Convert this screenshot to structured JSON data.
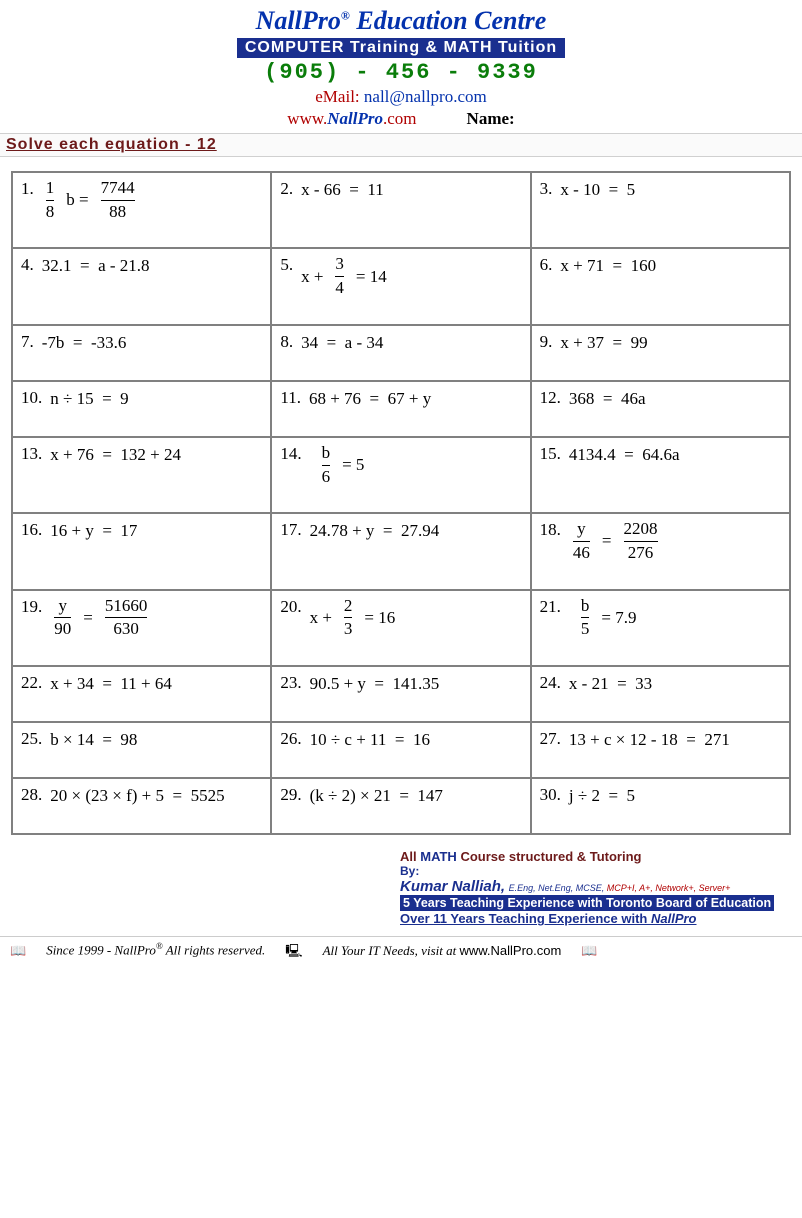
{
  "header": {
    "brand_pre": "NallPro",
    "brand_sup": "®",
    "brand_post": " Education Centre",
    "subhead": "COMPUTER Training & MATH Tuition",
    "phone": "(905) - 456 - 9339",
    "email_label": "eMail:",
    "email_value": "nall@nallpro.com",
    "www_pre": "www.",
    "www_brand": "NallPro",
    "www_post": ".com",
    "name_label": "Name:"
  },
  "title": "Solve each equation - 12",
  "problems": [
    {
      "n": "1.",
      "type": "fraceq",
      "lfrac": {
        "t": "1",
        "b": "8"
      },
      "mid": " b   =",
      "rfrac": {
        "t": "7744",
        "b": "88"
      }
    },
    {
      "n": "2.",
      "type": "plain",
      "text": "x - 66   =   11"
    },
    {
      "n": "3.",
      "type": "plain",
      "text": "x - 10   =   5"
    },
    {
      "n": "4.",
      "type": "plain",
      "text": "32.1   =   a - 21.8"
    },
    {
      "n": "5.",
      "type": "midfrac",
      "pre": "x +",
      "frac": {
        "t": "3",
        "b": "4"
      },
      "post": "=   14"
    },
    {
      "n": "6.",
      "type": "plain",
      "text": "x + 71   =   160"
    },
    {
      "n": "7.",
      "type": "plain",
      "text": "-7b   =   -33.6"
    },
    {
      "n": "8.",
      "type": "plain",
      "text": "34   =   a - 34"
    },
    {
      "n": "9.",
      "type": "plain",
      "text": "x + 37   =   99"
    },
    {
      "n": "10.",
      "type": "plain",
      "text": "n ÷ 15   =   9"
    },
    {
      "n": "11.",
      "type": "plain",
      "text": "68 + 76   =   67 + y"
    },
    {
      "n": "12.",
      "type": "plain",
      "text": "368   =   46a"
    },
    {
      "n": "13.",
      "type": "plain",
      "text": "x + 76   =   132 + 24"
    },
    {
      "n": "14.",
      "type": "midfrac",
      "pre": "",
      "frac": {
        "t": "b",
        "b": "6"
      },
      "post": "=   5"
    },
    {
      "n": "15.",
      "type": "plain",
      "text": "4134.4   =   64.6a"
    },
    {
      "n": "16.",
      "type": "plain",
      "text": "16 + y   =   17"
    },
    {
      "n": "17.",
      "type": "plain",
      "text": "24.78 + y   =   27.94"
    },
    {
      "n": "18.",
      "type": "fraceq",
      "lfrac": {
        "t": "y",
        "b": "46"
      },
      "mid": "=",
      "rfrac": {
        "t": "2208",
        "b": "276"
      }
    },
    {
      "n": "19.",
      "type": "fraceq",
      "lfrac": {
        "t": "y",
        "b": "90"
      },
      "mid": "=",
      "rfrac": {
        "t": "51660",
        "b": "630"
      }
    },
    {
      "n": "20.",
      "type": "midfrac",
      "pre": "x +",
      "frac": {
        "t": "2",
        "b": "3"
      },
      "post": "=   16"
    },
    {
      "n": "21.",
      "type": "midfrac",
      "pre": "",
      "frac": {
        "t": "b",
        "b": "5"
      },
      "post": "=   7.9"
    },
    {
      "n": "22.",
      "type": "plain",
      "text": "x + 34   =   11 + 64"
    },
    {
      "n": "23.",
      "type": "plain",
      "text": "90.5 + y   =   141.35"
    },
    {
      "n": "24.",
      "type": "plain",
      "text": "x - 21   =   33"
    },
    {
      "n": "25.",
      "type": "plain",
      "text": "b × 14  =  98"
    },
    {
      "n": "26.",
      "type": "plain",
      "text": "10 ÷ c + 11  =  16"
    },
    {
      "n": "27.",
      "type": "plain",
      "text": "13 + c × 12 - 18  =  271"
    },
    {
      "n": "28.",
      "type": "plain",
      "text": "20 × (23 × f) + 5  =  5525"
    },
    {
      "n": "29.",
      "type": "plain",
      "text": "(k ÷ 2) × 21  =  147"
    },
    {
      "n": "30.",
      "type": "plain",
      "text": "j ÷ 2  =  5"
    }
  ],
  "footer": {
    "line1_all": "All ",
    "line1_math": "MATH",
    "line1_rest": " Course structured & Tutoring",
    "by": "By:",
    "name": "Kumar Nalliah,",
    "creds_blue": " E.Eng, Net.Eng, MCSE, ",
    "creds_red": "MCP+I, A+, Network+, Server+",
    "bar": "5 Years Teaching Experience with Toronto Board of Education",
    "bot_pre": "Over 11 Years Teaching Experience with ",
    "bot_brand": "NallPro"
  },
  "bottom": {
    "book": "📖",
    "since_pre": "Since 1999 - NallPro",
    "since_sup": "®",
    "since_post": " All rights reserved.",
    "comp": "🖳",
    "it_text": "All Your IT Needs, visit at ",
    "it_url": "www.NallPro.com",
    "book2": "📖"
  },
  "colors": {
    "brand_blue": "#0432ad",
    "dark_red": "#6d1a1a",
    "red": "#b00000",
    "green": "#0a7d0a",
    "bar_blue": "#1a2f8f",
    "border_grey": "#808080"
  }
}
